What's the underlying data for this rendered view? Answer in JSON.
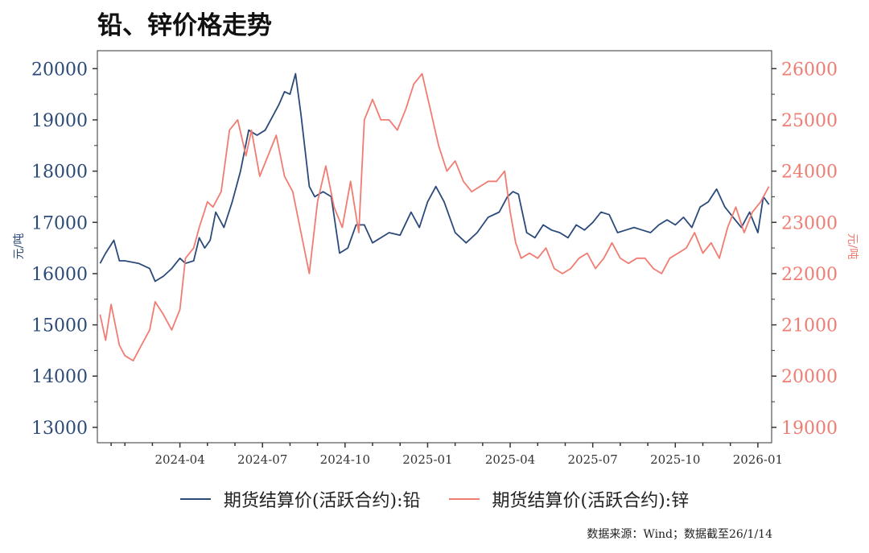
{
  "title": "铅、锌价格走势",
  "source": "数据来源：Wind；数据截至26/1/14",
  "colors": {
    "lead": "#2b4a7a",
    "zinc": "#f07c72",
    "axis": "#333333"
  },
  "chart_data": {
    "type": "line",
    "title": "铅、锌价格走势",
    "y_left": {
      "label": "元/吨",
      "range": [
        12700,
        20350
      ],
      "ticks": [
        13000,
        14000,
        15000,
        16000,
        17000,
        18000,
        19000,
        20000
      ],
      "tick_labels": [
        "13000",
        "14000",
        "15000",
        "16000",
        "17000",
        "18000",
        "19000",
        "20000"
      ]
    },
    "y_right": {
      "label": "元/吨",
      "range": [
        18700,
        26350
      ],
      "ticks": [
        19000,
        20000,
        21000,
        22000,
        23000,
        24000,
        25000,
        26000
      ],
      "tick_labels": [
        "19000",
        "20000",
        "21000",
        "22000",
        "23000",
        "24000",
        "25000",
        "26000"
      ]
    },
    "x_range_months": [
      0,
      24.5
    ],
    "x_ticks": [
      {
        "label": "2024-04",
        "month": 3
      },
      {
        "label": "2024-07",
        "month": 6
      },
      {
        "label": "2024-10",
        "month": 9
      },
      {
        "label": "2025-01",
        "month": 12
      },
      {
        "label": "2025-04",
        "month": 15
      },
      {
        "label": "2025-07",
        "month": 18
      },
      {
        "label": "2025-10",
        "month": 21
      },
      {
        "label": "2026-01",
        "month": 24
      }
    ],
    "x_minor_months": [
      0.5,
      1,
      2,
      4,
      5,
      7,
      8,
      10,
      11,
      13,
      14,
      16,
      17,
      19,
      20,
      22,
      23
    ],
    "series": [
      {
        "name": "期货结算价(活跃合约):铅",
        "axis": "left",
        "x": [
          0.1,
          0.3,
          0.6,
          0.8,
          1.0,
          1.5,
          1.9,
          2.1,
          2.4,
          2.7,
          3.0,
          3.2,
          3.5,
          3.7,
          3.9,
          4.1,
          4.3,
          4.6,
          4.9,
          5.2,
          5.5,
          5.8,
          6.1,
          6.4,
          6.6,
          6.8,
          7.0,
          7.2,
          7.4,
          7.7,
          7.9,
          8.2,
          8.5,
          8.8,
          9.1,
          9.4,
          9.7,
          10.0,
          10.3,
          10.6,
          11.0,
          11.4,
          11.7,
          12.0,
          12.3,
          12.6,
          13.0,
          13.4,
          13.8,
          14.2,
          14.6,
          14.9,
          15.1,
          15.3,
          15.6,
          15.9,
          16.2,
          16.5,
          16.8,
          17.1,
          17.4,
          17.7,
          18.0,
          18.3,
          18.6,
          18.9,
          19.2,
          19.5,
          19.8,
          20.1,
          20.4,
          20.7,
          21.0,
          21.3,
          21.6,
          21.9,
          22.2,
          22.5,
          22.8,
          23.1,
          23.4,
          23.7,
          24.0,
          24.2,
          24.4
        ],
        "y": [
          16200,
          16400,
          16650,
          16250,
          16250,
          16200,
          16100,
          15850,
          15950,
          16100,
          16300,
          16200,
          16250,
          16700,
          16500,
          16650,
          17200,
          16900,
          17400,
          18000,
          18800,
          18700,
          18800,
          19100,
          19300,
          19550,
          19500,
          19900,
          19100,
          17700,
          17500,
          17600,
          17500,
          16400,
          16500,
          16950,
          16950,
          16600,
          16700,
          16800,
          16750,
          17200,
          16900,
          17400,
          17700,
          17400,
          16800,
          16600,
          16800,
          17100,
          17200,
          17500,
          17600,
          17550,
          16800,
          16700,
          16950,
          16850,
          16800,
          16700,
          16950,
          16850,
          17000,
          17200,
          17150,
          16800,
          16850,
          16900,
          16850,
          16800,
          16950,
          17050,
          16950,
          17100,
          16900,
          17300,
          17400,
          17650,
          17300,
          17100,
          16900,
          17200,
          16800,
          17500,
          17350
        ]
      },
      {
        "name": "期货结算价(活跃合约):锌",
        "axis": "right",
        "x": [
          0.1,
          0.3,
          0.5,
          0.8,
          1.0,
          1.3,
          1.6,
          1.9,
          2.1,
          2.4,
          2.7,
          3.0,
          3.2,
          3.5,
          3.7,
          4.0,
          4.2,
          4.5,
          4.8,
          5.1,
          5.4,
          5.6,
          5.9,
          6.2,
          6.5,
          6.8,
          7.1,
          7.4,
          7.7,
          8.0,
          8.3,
          8.6,
          8.9,
          9.2,
          9.5,
          9.7,
          10.0,
          10.3,
          10.6,
          10.9,
          11.2,
          11.5,
          11.8,
          12.1,
          12.4,
          12.7,
          13.0,
          13.3,
          13.6,
          13.9,
          14.2,
          14.5,
          14.8,
          15.0,
          15.2,
          15.4,
          15.7,
          16.0,
          16.3,
          16.6,
          16.9,
          17.2,
          17.5,
          17.8,
          18.1,
          18.4,
          18.7,
          19.0,
          19.3,
          19.6,
          19.9,
          20.2,
          20.5,
          20.8,
          21.1,
          21.4,
          21.7,
          22.0,
          22.3,
          22.6,
          22.9,
          23.2,
          23.5,
          23.8,
          24.1,
          24.4
        ],
        "y": [
          21200,
          20700,
          21400,
          20600,
          20400,
          20300,
          20600,
          20900,
          21450,
          21200,
          20900,
          21300,
          22300,
          22500,
          22900,
          23400,
          23300,
          23600,
          24800,
          25000,
          24300,
          24800,
          23900,
          24300,
          24700,
          23900,
          23600,
          22800,
          22000,
          23400,
          24100,
          23300,
          22900,
          23800,
          22800,
          25000,
          25400,
          25000,
          25000,
          24800,
          25200,
          25700,
          25900,
          25200,
          24500,
          24000,
          24200,
          23800,
          23600,
          23700,
          23800,
          23800,
          24000,
          23200,
          22600,
          22300,
          22400,
          22300,
          22500,
          22100,
          22000,
          22100,
          22300,
          22400,
          22100,
          22300,
          22600,
          22300,
          22200,
          22300,
          22300,
          22100,
          22000,
          22300,
          22400,
          22500,
          22800,
          22400,
          22600,
          22300,
          22900,
          23300,
          22800,
          23200,
          23400,
          23700
        ]
      }
    ]
  }
}
